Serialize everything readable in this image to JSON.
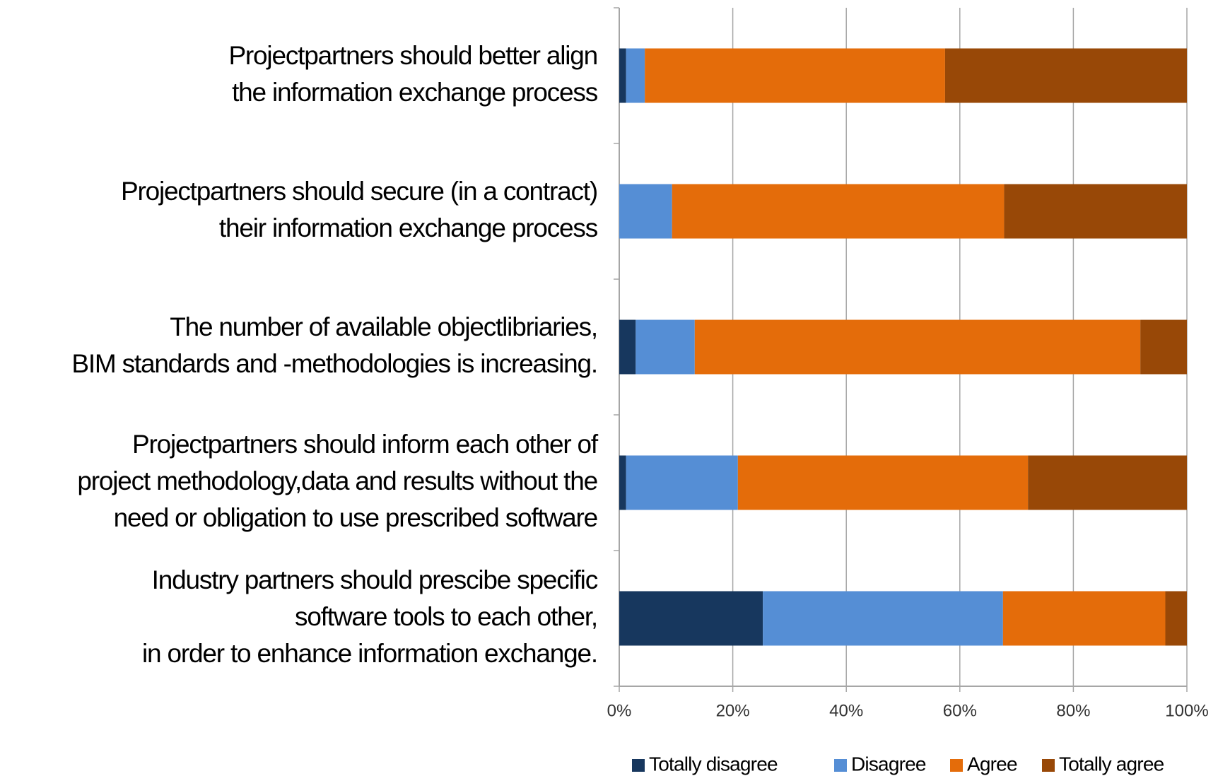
{
  "chart_data": {
    "type": "stacked_bar_horizontal",
    "categories": [
      "Projectpartners should better align\nthe information exchange process",
      "Projectpartners should secure (in a contract)\ntheir information exchange process",
      "The number of available objectlibriaries,\nBIM standards and -methodologies is increasing.",
      "Projectpartners should inform each other of\nproject methodology,data and results without the\nneed or obligation to use prescribed software",
      "Industry partners should prescibe specific\nsoftware tools to each other,\nin order to enhance information exchange."
    ],
    "series": [
      {
        "name": "Totally disagree",
        "color": "#17375e",
        "values": [
          1.2,
          0,
          2.9,
          1.2,
          25.3
        ]
      },
      {
        "name": "Disagree",
        "color": "#558ed5",
        "values": [
          3.3,
          9.3,
          10.4,
          19.7,
          42.3
        ]
      },
      {
        "name": "Agree",
        "color": "#e46c0a",
        "values": [
          52.9,
          58.5,
          78.5,
          51.1,
          28.6
        ]
      },
      {
        "name": "Totally agree",
        "color": "#984807",
        "values": [
          42.6,
          32.2,
          8.2,
          28.0,
          3.8
        ]
      }
    ],
    "xlim": [
      0,
      100
    ],
    "xticks": [
      {
        "value": 0,
        "label": "0%"
      },
      {
        "value": 20,
        "label": "20%"
      },
      {
        "value": 40,
        "label": "40%"
      },
      {
        "value": 60,
        "label": "60%"
      },
      {
        "value": 80,
        "label": "80%"
      },
      {
        "value": 100,
        "label": "100%"
      }
    ],
    "grid": true,
    "legend": "bottom"
  }
}
